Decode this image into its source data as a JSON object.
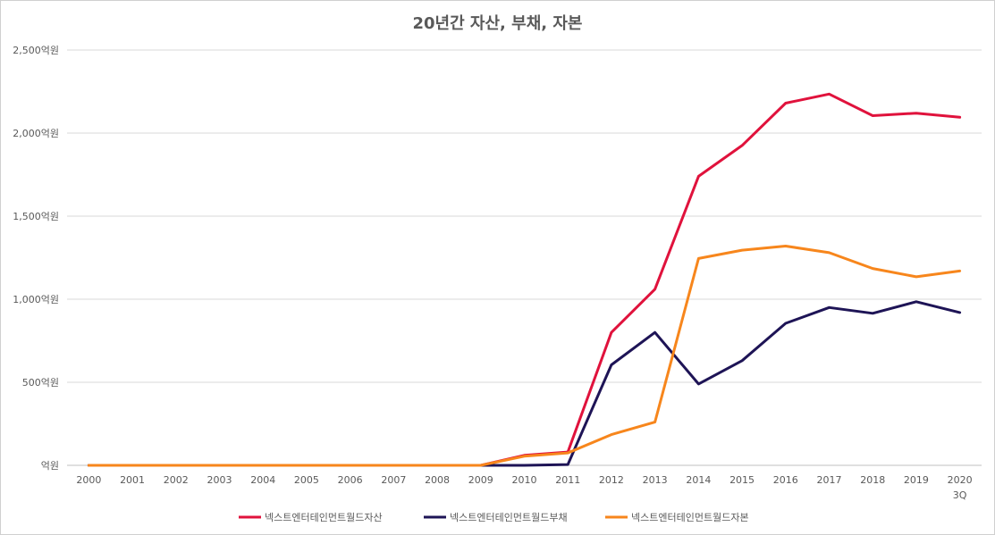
{
  "chart_data": {
    "type": "line",
    "title": "20년간 자산, 부채, 자본",
    "xlabel": "",
    "ylabel": "",
    "categories": [
      "2000",
      "2001",
      "2002",
      "2003",
      "2004",
      "2005",
      "2006",
      "2007",
      "2008",
      "2009",
      "2010",
      "2011",
      "2012",
      "2013",
      "2014",
      "2015",
      "2016",
      "2017",
      "2018",
      "2019",
      "2020 3Q"
    ],
    "category_lines": [
      [
        "2000"
      ],
      [
        "2001"
      ],
      [
        "2002"
      ],
      [
        "2003"
      ],
      [
        "2004"
      ],
      [
        "2005"
      ],
      [
        "2006"
      ],
      [
        "2007"
      ],
      [
        "2008"
      ],
      [
        "2009"
      ],
      [
        "2010"
      ],
      [
        "2011"
      ],
      [
        "2012"
      ],
      [
        "2013"
      ],
      [
        "2014"
      ],
      [
        "2015"
      ],
      [
        "2016"
      ],
      [
        "2017"
      ],
      [
        "2018"
      ],
      [
        "2019"
      ],
      [
        "2020",
        "3Q"
      ]
    ],
    "ylim": [
      0,
      2500
    ],
    "yticks": [
      0,
      500,
      1000,
      1500,
      2000,
      2500
    ],
    "ytick_labels": [
      "억원",
      "500억원",
      "1,000억원",
      "1,500억원",
      "2,000억원",
      "2,500억원"
    ],
    "grid": true,
    "legend_position": "bottom",
    "series": [
      {
        "name": "넥스트엔터테인먼트월드자산",
        "color": "#e0123c",
        "values": [
          0,
          0,
          0,
          0,
          0,
          0,
          0,
          0,
          0,
          0,
          60,
          80,
          800,
          1060,
          1740,
          1925,
          2180,
          2235,
          2105,
          2120,
          2095
        ]
      },
      {
        "name": "넥스트엔터테인먼트월드부채",
        "color": "#1e1456",
        "values": [
          0,
          0,
          0,
          0,
          0,
          0,
          0,
          0,
          0,
          0,
          0,
          5,
          605,
          800,
          490,
          630,
          855,
          950,
          915,
          985,
          920
        ]
      },
      {
        "name": "넥스트엔터테인먼트월드자본",
        "color": "#f7861c",
        "values": [
          0,
          0,
          0,
          0,
          0,
          0,
          0,
          0,
          0,
          0,
          55,
          75,
          185,
          260,
          1245,
          1295,
          1320,
          1280,
          1185,
          1135,
          1170
        ]
      }
    ]
  }
}
